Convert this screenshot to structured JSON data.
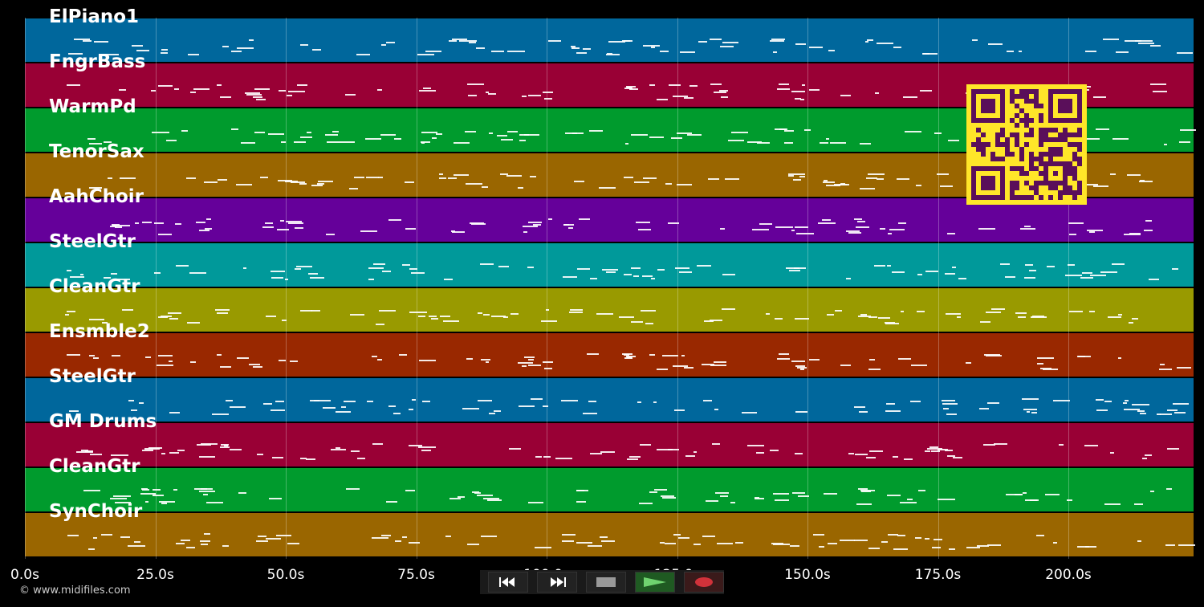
{
  "tracks": [
    {
      "name": "ElPiano1",
      "color": "#00679c"
    },
    {
      "name": "FngrBass",
      "color": "#990035"
    },
    {
      "name": "WarmPd",
      "color": "#009b2d"
    },
    {
      "name": "TenorSax",
      "color": "#9a6600"
    },
    {
      "name": "AahChoir",
      "color": "#65009a"
    },
    {
      "name": "SteelGtr",
      "color": "#00999a"
    },
    {
      "name": "CleanGtr",
      "color": "#999a00"
    },
    {
      "name": "Ensmble2",
      "color": "#992800"
    },
    {
      "name": "SteelGtr",
      "color": "#00679c"
    },
    {
      "name": "GM Drums",
      "color": "#990035"
    },
    {
      "name": "CleanGtr",
      "color": "#009b2d"
    },
    {
      "name": "SynChoir",
      "color": "#9a6600"
    }
  ],
  "timeline": {
    "ticks": [
      "0.0s",
      "25.0s",
      "50.0s",
      "75.0s",
      "100.0s",
      "125.0s",
      "150.0s",
      "175.0s",
      "200.0s"
    ],
    "tick_values": [
      0,
      25,
      50,
      75,
      100,
      125,
      150,
      175,
      200
    ],
    "max_seconds": 224
  },
  "transport": {
    "rewind_icon": "rewind-icon",
    "forward_icon": "fast-forward-icon",
    "stop_icon": "stop-icon",
    "play_icon": "play-icon",
    "record_icon": "record-icon"
  },
  "copyright": "© www.midifiles.com",
  "qr": {
    "fg": "#5a0f5a",
    "bg": "#ffe629"
  }
}
